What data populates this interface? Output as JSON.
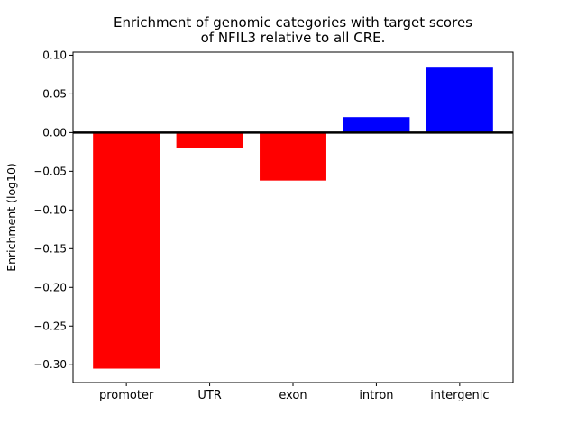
{
  "figure": {
    "background": "#ffffff"
  },
  "chart_data": {
    "type": "bar",
    "title": "Enrichment of genomic categories with target scores of NFIL3 relative to all CRE.",
    "title_lines": [
      "Enrichment of genomic categories with target scores",
      "of NFIL3 relative to all CRE."
    ],
    "categories": [
      "promoter",
      "UTR",
      "exon",
      "intron",
      "intergenic"
    ],
    "values": [
      -0.305,
      -0.02,
      -0.062,
      0.02,
      0.084
    ],
    "bar_colors": [
      "#ff0000",
      "#ff0000",
      "#ff0000",
      "#0000ff",
      "#0000ff"
    ],
    "negative_color": "#ff0000",
    "positive_color": "#0000ff",
    "xlabel": "",
    "ylabel": "Enrichment (log10)",
    "yticks": [
      0.1,
      0.05,
      0.0,
      -0.05,
      -0.1,
      -0.15,
      -0.2,
      -0.25,
      -0.3
    ],
    "ytick_labels": [
      "0.10",
      "0.05",
      "0.00",
      "−0.05",
      "−0.10",
      "−0.15",
      "−0.20",
      "−0.25",
      "−0.30"
    ],
    "ylim": [
      -0.323,
      0.104
    ],
    "xlim": [
      -0.64,
      4.64
    ],
    "bar_width": 0.8,
    "grid": false,
    "legend": "none",
    "zero_line": true,
    "zero_line_color": "#000000",
    "axis_color": "#000000",
    "plot_background": "#ffffff"
  }
}
